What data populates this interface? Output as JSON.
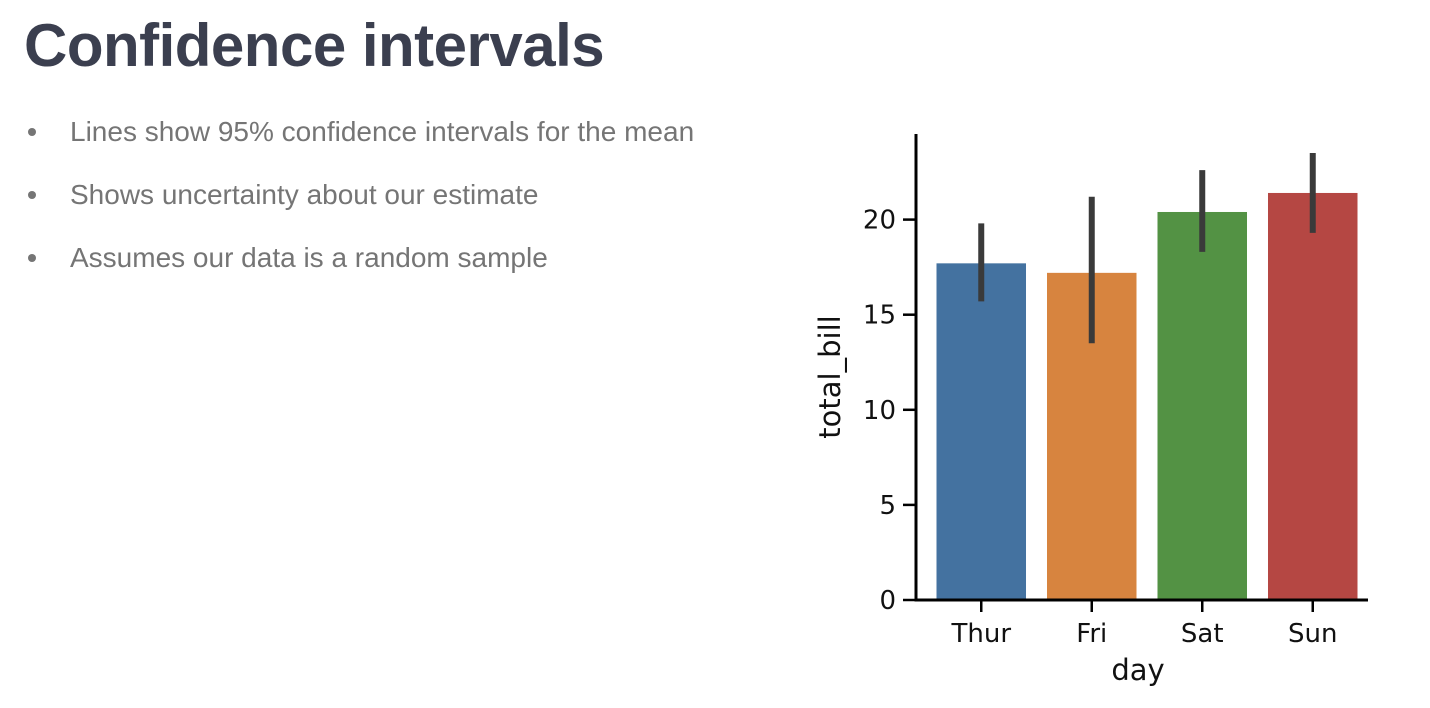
{
  "slide": {
    "title": "Confidence intervals",
    "bullets": [
      "Lines show 95% confidence intervals for the mean",
      "Shows uncertainty about our estimate",
      "Assumes our data is a random sample"
    ]
  },
  "chart_data": {
    "type": "bar",
    "categories": [
      "Thur",
      "Fri",
      "Sat",
      "Sun"
    ],
    "values": [
      17.7,
      17.2,
      20.4,
      21.4
    ],
    "ci_low": [
      15.7,
      13.5,
      18.3,
      19.3
    ],
    "ci_high": [
      19.8,
      21.2,
      22.6,
      23.5
    ],
    "colors": [
      "#4472a0",
      "#d7843f",
      "#539244",
      "#b54743"
    ],
    "error_bar_color": "#3a3a3a",
    "xlabel": "day",
    "ylabel": "total_bill",
    "ylim": [
      0,
      24.5
    ],
    "yticks": [
      0,
      5,
      10,
      15,
      20
    ],
    "grid": false
  }
}
